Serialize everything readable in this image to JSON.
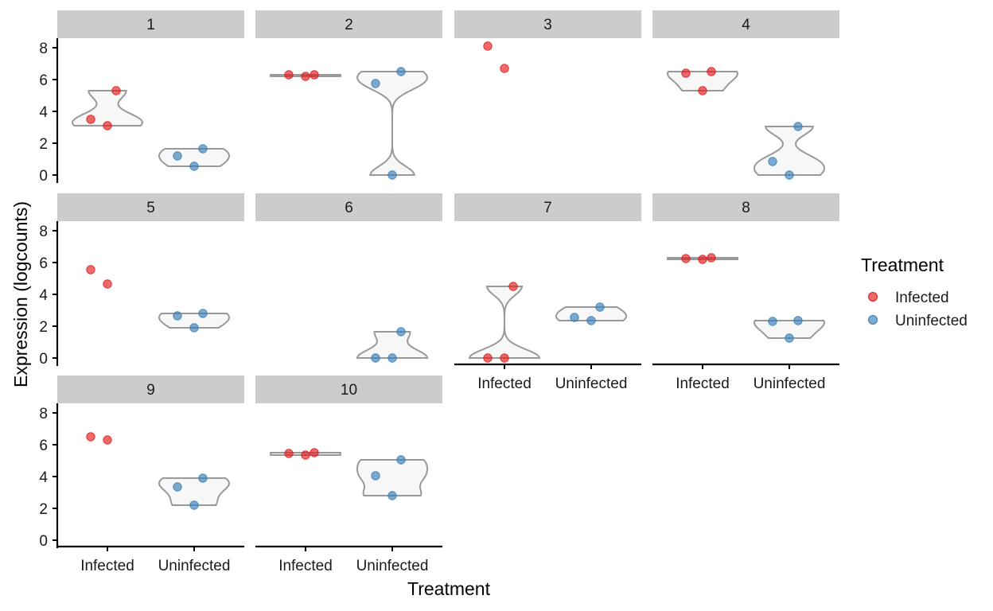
{
  "chart_data": {
    "type": "scatter",
    "subtype": "faceted violin with jittered points",
    "xlabel": "Treatment",
    "ylabel": "Expression (logcounts)",
    "ylim": [
      0,
      8.5
    ],
    "yticks": [
      0,
      2,
      4,
      6,
      8
    ],
    "categories": [
      "Infected",
      "Uninfected"
    ],
    "legend": {
      "title": "Treatment",
      "position": "right",
      "entries": [
        {
          "name": "Infected",
          "color": "#E41A1C"
        },
        {
          "name": "Uninfected",
          "color": "#377EB8"
        }
      ]
    },
    "facets": [
      {
        "label": "1",
        "Infected": [
          3.5,
          3.1,
          5.3
        ],
        "Uninfected": [
          1.2,
          0.55,
          1.65
        ]
      },
      {
        "label": "2",
        "Infected": [
          6.3,
          6.2,
          6.3
        ],
        "Uninfected": [
          5.75,
          0.0,
          6.5
        ]
      },
      {
        "label": "3",
        "Infected": [
          8.1,
          6.7
        ],
        "Uninfected": []
      },
      {
        "label": "4",
        "Infected": [
          6.4,
          5.3,
          6.5
        ],
        "Uninfected": [
          0.85,
          0.0,
          3.05
        ]
      },
      {
        "label": "5",
        "Infected": [
          5.55,
          4.65
        ],
        "Uninfected": [
          2.65,
          1.9,
          2.8
        ]
      },
      {
        "label": "6",
        "Infected": [],
        "Uninfected": [
          0.0,
          0.0,
          1.65
        ]
      },
      {
        "label": "7",
        "Infected": [
          0.0,
          0.0,
          4.5
        ],
        "Uninfected": [
          2.55,
          2.35,
          3.2
        ]
      },
      {
        "label": "8",
        "Infected": [
          6.25,
          6.2,
          6.3
        ],
        "Uninfected": [
          2.3,
          1.25,
          2.35
        ]
      },
      {
        "label": "9",
        "Infected": [
          6.5,
          6.3
        ],
        "Uninfected": [
          3.35,
          2.2,
          3.9
        ]
      },
      {
        "label": "10",
        "Infected": [
          5.45,
          5.35,
          5.5
        ],
        "Uninfected": [
          4.05,
          2.8,
          5.05
        ]
      }
    ]
  }
}
